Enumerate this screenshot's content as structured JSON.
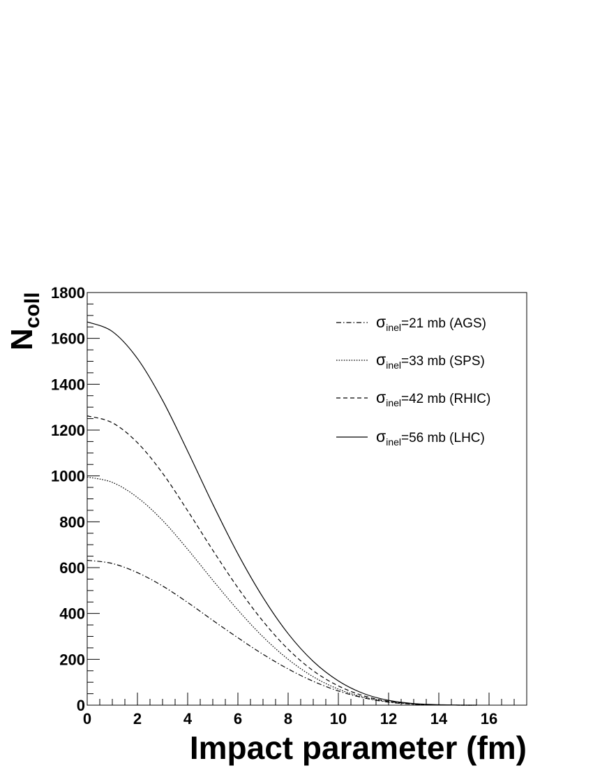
{
  "chart_data": {
    "type": "line",
    "title": "",
    "xlabel": "Impact parameter (fm)",
    "ylabel": {
      "main": "N",
      "sub": "coll"
    },
    "xlim": [
      0,
      17.5
    ],
    "ylim": [
      0,
      1800
    ],
    "x_ticks": [
      0,
      2,
      4,
      6,
      8,
      10,
      12,
      14,
      16
    ],
    "y_ticks": [
      0,
      200,
      400,
      600,
      800,
      1000,
      1200,
      1400,
      1600,
      1800
    ],
    "grid": false,
    "legend_position": "top-right",
    "x": [
      0,
      1,
      2,
      3,
      4,
      5,
      6,
      7,
      8,
      9,
      10,
      11,
      12,
      13,
      14,
      15,
      15.5
    ],
    "series": [
      {
        "name": {
          "prefix": "σ",
          "sub": "inel",
          "suffix": "=21 mb (AGS)"
        },
        "dash": "dashdot",
        "values": [
          632,
          618,
          578,
          520,
          448,
          370,
          294,
          222,
          158,
          104,
          62,
          32,
          13,
          4,
          1,
          0,
          0
        ]
      },
      {
        "name": {
          "prefix": "σ",
          "sub": "inel",
          "suffix": "=33 mb (SPS)"
        },
        "dash": "dotted",
        "values": [
          995,
          972,
          906,
          806,
          680,
          545,
          415,
          298,
          200,
          124,
          70,
          35,
          15,
          5,
          1,
          0,
          0
        ]
      },
      {
        "name": {
          "prefix": "σ",
          "sub": "inel",
          "suffix": "=42 mb (RHIC)"
        },
        "dash": "dashed",
        "values": [
          1262,
          1232,
          1145,
          1012,
          848,
          676,
          512,
          366,
          244,
          150,
          84,
          41,
          17,
          6,
          1,
          0,
          0
        ]
      },
      {
        "name": {
          "prefix": "σ",
          "sub": "inel",
          "suffix": "=56 mb (LHC)"
        },
        "dash": "solid",
        "values": [
          1672,
          1630,
          1512,
          1330,
          1108,
          877,
          660,
          470,
          312,
          191,
          106,
          51,
          21,
          7,
          2,
          0,
          0
        ]
      }
    ]
  }
}
